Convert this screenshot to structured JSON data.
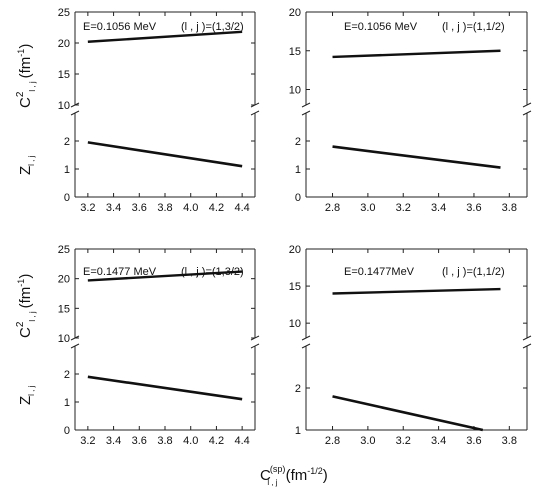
{
  "chart_data": [
    {
      "type": "line",
      "position": "top-left",
      "annotation_energy": "E=0.1056 MeV",
      "annotation_state": "(l , j )=(1,3/2)",
      "xlim": [
        3.1,
        4.5
      ],
      "x_ticks": [
        3.2,
        3.4,
        3.6,
        3.8,
        4.0,
        4.2,
        4.4
      ],
      "x_tick_labels": [
        "3.2",
        "3.4",
        "3.6",
        "3.8",
        "4.0",
        "4.2",
        "4.4"
      ],
      "upper": {
        "ylim": [
          10,
          25
        ],
        "y_ticks": [
          10,
          15,
          20,
          25
        ],
        "y_tick_labels": [
          "10",
          "15",
          "20",
          "25"
        ],
        "series": [
          {
            "x": [
              3.2,
              4.4
            ],
            "y": [
              20.2,
              21.8
            ]
          }
        ]
      },
      "lower": {
        "ylim": [
          0,
          3
        ],
        "y_ticks": [
          0,
          1,
          2
        ],
        "y_tick_labels": [
          "0",
          "1",
          "2"
        ],
        "series": [
          {
            "x": [
              3.2,
              4.4
            ],
            "y": [
              1.95,
              1.1
            ]
          }
        ]
      }
    },
    {
      "type": "line",
      "position": "top-right",
      "annotation_energy": "E=0.1056 MeV",
      "annotation_state": "(l , j )=(1,1/2)",
      "xlim": [
        2.65,
        3.9
      ],
      "x_ticks": [
        2.8,
        3.0,
        3.2,
        3.4,
        3.6,
        3.8
      ],
      "x_tick_labels": [
        "2.8",
        "3.0",
        "3.2",
        "3.4",
        "3.6",
        "3.8"
      ],
      "upper": {
        "ylim": [
          8,
          20
        ],
        "y_ticks": [
          10,
          15,
          20
        ],
        "y_tick_labels": [
          "10",
          "15",
          "20"
        ],
        "series": [
          {
            "x": [
              2.8,
              3.75
            ],
            "y": [
              14.2,
              15.0
            ]
          }
        ]
      },
      "lower": {
        "ylim": [
          0,
          3
        ],
        "y_ticks": [
          0,
          1,
          2
        ],
        "y_tick_labels": [
          "0",
          "1",
          "2"
        ],
        "series": [
          {
            "x": [
              2.8,
              3.75
            ],
            "y": [
              1.8,
              1.05
            ]
          }
        ]
      }
    },
    {
      "type": "line",
      "position": "bottom-left",
      "annotation_energy": "E=0.1477 MeV",
      "annotation_state": "(l , j )=(1,3/2)",
      "xlim": [
        3.1,
        4.5
      ],
      "x_ticks": [
        3.2,
        3.4,
        3.6,
        3.8,
        4.0,
        4.2,
        4.4
      ],
      "x_tick_labels": [
        "3.2",
        "3.4",
        "3.6",
        "3.8",
        "4.0",
        "4.2",
        "4.4"
      ],
      "upper": {
        "ylim": [
          10,
          25
        ],
        "y_ticks": [
          10,
          15,
          20,
          25
        ],
        "y_tick_labels": [
          "10",
          "15",
          "20",
          "25"
        ],
        "series": [
          {
            "x": [
              3.2,
              4.4
            ],
            "y": [
              19.7,
              21.2
            ]
          }
        ]
      },
      "lower": {
        "ylim": [
          0,
          3
        ],
        "y_ticks": [
          0,
          1,
          2
        ],
        "y_tick_labels": [
          "0",
          "1",
          "2"
        ],
        "series": [
          {
            "x": [
              3.2,
              4.4
            ],
            "y": [
              1.9,
              1.1
            ]
          }
        ]
      }
    },
    {
      "type": "line",
      "position": "bottom-right",
      "annotation_energy": "E=0.1477MeV",
      "annotation_state": "(l , j )=(1,1/2)",
      "xlim": [
        2.65,
        3.9
      ],
      "x_ticks": [
        2.8,
        3.0,
        3.2,
        3.4,
        3.6,
        3.8
      ],
      "x_tick_labels": [
        "2.8",
        "3.0",
        "3.2",
        "3.4",
        "3.6",
        "3.8"
      ],
      "upper": {
        "ylim": [
          8,
          20
        ],
        "y_ticks": [
          10,
          15,
          20
        ],
        "y_tick_labels": [
          "10",
          "15",
          "20"
        ],
        "series": [
          {
            "x": [
              2.8,
              3.75
            ],
            "y": [
              14.0,
              14.6
            ]
          }
        ]
      },
      "lower": {
        "ylim": [
          1,
          3
        ],
        "y_ticks": [
          1,
          2
        ],
        "y_tick_labels": [
          "1",
          "2"
        ],
        "series": [
          {
            "x": [
              2.8,
              3.65
            ],
            "y": [
              1.8,
              1.0
            ]
          }
        ]
      }
    }
  ],
  "labels": {
    "c2_upper": "C",
    "c2_sup": "2",
    "c2_sub": "l , j",
    "c2_unit": "(fm",
    "c2_unit_exp": "-1",
    "c2_unit_close": ")",
    "z_main": "Z",
    "z_sub": "l , j",
    "x_main": "C",
    "x_sup": "(sp)",
    "x_sub": "l , j",
    "x_unit": "(fm",
    "x_unit_exp": "-1/2",
    "x_unit_close": ")"
  }
}
